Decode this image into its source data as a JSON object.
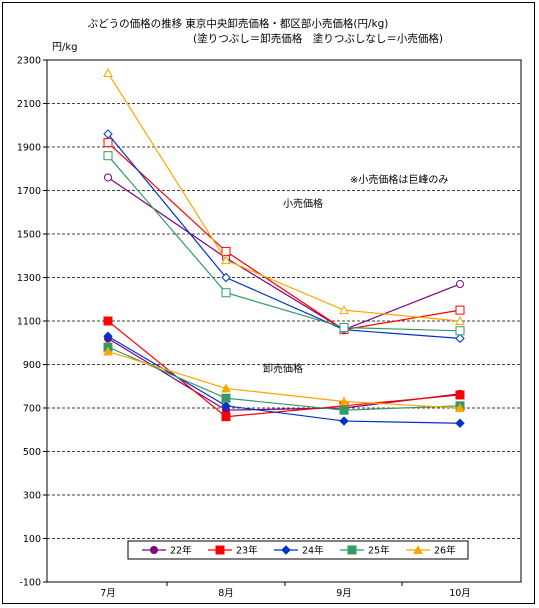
{
  "chart_data": {
    "type": "line",
    "title_line1": "ぶどうの価格の推移 東京中央卸売価格・都区部小売価格(円/kg)",
    "title_line2": "(塗りつぶし＝卸売価格　塗りつぶしなし＝小売価格)",
    "ylabel": "円/kg",
    "note": "※小売価格は巨峰のみ",
    "label_retail": "小売価格",
    "label_wholesale": "卸売価格",
    "categories": [
      "7月",
      "8月",
      "9月",
      "10月"
    ],
    "ylim": [
      -100,
      2300
    ],
    "yticks": [
      -100,
      100,
      300,
      500,
      700,
      900,
      1100,
      1300,
      1500,
      1700,
      1900,
      2100,
      2300
    ],
    "grid": true,
    "legend_position": "bottom",
    "series": [
      {
        "name": "22年",
        "color": "#800080",
        "marker": "circle",
        "wholesale": [
          1020,
          690,
          700,
          765
        ],
        "retail": [
          1760,
          1390,
          1060,
          1270
        ]
      },
      {
        "name": "23年",
        "color": "#ff0000",
        "marker": "square",
        "wholesale": [
          1100,
          660,
          710,
          760
        ],
        "retail": [
          1920,
          1420,
          1060,
          1150
        ]
      },
      {
        "name": "24年",
        "color": "#0033cc",
        "marker": "diamond",
        "wholesale": [
          1030,
          710,
          640,
          630
        ],
        "retail": [
          1960,
          1300,
          1060,
          1020
        ]
      },
      {
        "name": "25年",
        "color": "#339966",
        "marker": "square",
        "wholesale": [
          980,
          745,
          690,
          710
        ],
        "retail": [
          1860,
          1230,
          1070,
          1055
        ]
      },
      {
        "name": "26年",
        "color": "#ffa500",
        "marker": "triangle",
        "wholesale": [
          960,
          790,
          730,
          700
        ],
        "retail": [
          2240,
          1380,
          1150,
          1100
        ]
      }
    ]
  }
}
